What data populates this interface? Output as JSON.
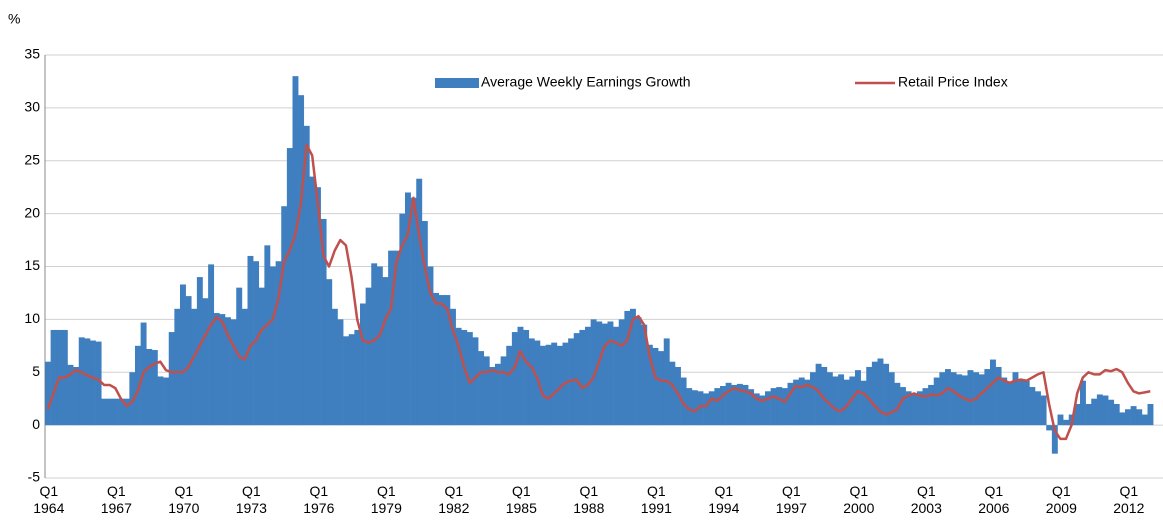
{
  "chart_data": {
    "type": "bar_line",
    "ylabel": "%",
    "ylim": [
      -5,
      35
    ],
    "yticks": [
      -5,
      0,
      5,
      10,
      15,
      20,
      25,
      30,
      35
    ],
    "grid": true,
    "legend": "top",
    "categories": [
      "Q1\n1964",
      null,
      null,
      null,
      null,
      null,
      null,
      null,
      null,
      null,
      null,
      null,
      "Q1\n1967",
      null,
      null,
      null,
      null,
      null,
      null,
      null,
      null,
      null,
      null,
      null,
      "Q1\n1970",
      null,
      null,
      null,
      null,
      null,
      null,
      null,
      null,
      null,
      null,
      null,
      "Q1\n1973",
      null,
      null,
      null,
      null,
      null,
      null,
      null,
      null,
      null,
      null,
      null,
      "Q1\n1976",
      null,
      null,
      null,
      null,
      null,
      null,
      null,
      null,
      null,
      null,
      null,
      "Q1\n1979",
      null,
      null,
      null,
      null,
      null,
      null,
      null,
      null,
      null,
      null,
      null,
      "Q1\n1982",
      null,
      null,
      null,
      null,
      null,
      null,
      null,
      null,
      null,
      null,
      null,
      "Q1\n1985",
      null,
      null,
      null,
      null,
      null,
      null,
      null,
      null,
      null,
      null,
      null,
      "Q1\n1988",
      null,
      null,
      null,
      null,
      null,
      null,
      null,
      null,
      null,
      null,
      null,
      "Q1\n1991",
      null,
      null,
      null,
      null,
      null,
      null,
      null,
      null,
      null,
      null,
      null,
      "Q1\n1994",
      null,
      null,
      null,
      null,
      null,
      null,
      null,
      null,
      null,
      null,
      null,
      "Q1\n1997",
      null,
      null,
      null,
      null,
      null,
      null,
      null,
      null,
      null,
      null,
      null,
      "Q1\n2000",
      null,
      null,
      null,
      null,
      null,
      null,
      null,
      null,
      null,
      null,
      null,
      "Q1\n2003",
      null,
      null,
      null,
      null,
      null,
      null,
      null,
      null,
      null,
      null,
      null,
      "Q1\n2006",
      null,
      null,
      null,
      null,
      null,
      null,
      null,
      null,
      null,
      null,
      null,
      "Q1\n2009",
      null,
      null,
      null,
      null,
      null,
      null,
      null,
      null,
      null,
      null,
      null,
      "Q1\n2012",
      null,
      null,
      null,
      null
    ],
    "series": [
      {
        "name": "Average Weekly Earnings Growth",
        "type": "bar",
        "color": "#3f7fbf",
        "values": [
          6.0,
          9,
          9,
          9,
          5.7,
          5.5,
          8.3,
          8.2,
          8.0,
          7.9,
          2.5,
          2.5,
          2.5,
          2.5,
          2.5,
          5.0,
          7.5,
          9.7,
          7.2,
          7.1,
          4.6,
          4.5,
          8.8,
          11.0,
          13.3,
          12.2,
          11.0,
          14.0,
          12.0,
          15.2,
          10.6,
          10.5,
          10.2,
          10.0,
          13.0,
          11.0,
          16.0,
          15.5,
          13.0,
          17.0,
          15.0,
          15.5,
          20.7,
          26.2,
          33.0,
          31.2,
          28.3,
          23.5,
          22.5,
          19.5,
          13.8,
          11.0,
          10.0,
          8.4,
          8.6,
          9.0,
          11.5,
          13.0,
          15.3,
          15.0,
          14.0,
          16.5,
          16.5,
          20.0,
          22.0,
          21.5,
          23.3,
          19.3,
          15.0,
          12.5,
          12.3,
          12.3,
          11.0,
          9.2,
          9.0,
          8.8,
          8.3,
          7.0,
          6.5,
          5.5,
          5.8,
          6.5,
          7.5,
          8.8,
          9.3,
          9.0,
          8.2,
          8.0,
          7.5,
          7.6,
          7.8,
          7.5,
          7.8,
          8.2,
          8.7,
          9.0,
          9.3,
          10.0,
          9.8,
          9.6,
          9.8,
          9.3,
          10.0,
          10.8,
          11.0,
          10.2,
          9.5,
          7.6,
          7.3,
          7.0,
          8.2,
          6.0,
          5.5,
          4.5,
          3.5,
          3.3,
          3.2,
          3.0,
          3.2,
          3.5,
          3.7,
          4.0,
          3.8,
          3.9,
          3.8,
          3.4,
          3.0,
          2.8,
          3.2,
          3.5,
          3.6,
          3.5,
          4.0,
          4.3,
          4.5,
          4.3,
          5.0,
          5.8,
          5.5,
          5.0,
          4.6,
          4.8,
          4.3,
          4.6,
          5.2,
          4.2,
          5.5,
          6.0,
          6.3,
          5.8,
          5.0,
          4.0,
          3.6,
          3.2,
          3.0,
          3.2,
          3.5,
          3.8,
          4.5,
          5.0,
          5.3,
          5.0,
          4.8,
          4.7,
          5.2,
          5.0,
          4.8,
          5.3,
          6.2,
          5.5,
          4.5,
          4.0,
          5.0,
          4.3,
          4.2,
          3.6,
          3.2,
          2.8,
          -0.5,
          -2.7,
          1.0,
          0.5,
          1.0,
          2.0,
          4.2,
          2.0,
          2.5,
          2.9,
          2.8,
          2.4,
          2.0,
          1.2,
          1.5,
          1.8,
          1.5,
          1.0,
          2.0
        ]
      },
      {
        "name": "Retail Price Index",
        "type": "line",
        "color": "#c0504d",
        "values": [
          1.5,
          3,
          4.5,
          4.5,
          4.8,
          5.2,
          5.0,
          4.7,
          4.5,
          4.3,
          3.8,
          3.8,
          3.5,
          2.5,
          1.8,
          2.2,
          3.2,
          5.0,
          5.5,
          5.8,
          6.0,
          5.2,
          5.0,
          5.0,
          5.0,
          5.5,
          6.5,
          7.5,
          8.5,
          9.5,
          10.2,
          9.8,
          8.5,
          7.5,
          6.5,
          6.2,
          7.5,
          8.0,
          9.0,
          9.5,
          10.0,
          12.0,
          15.5,
          16.5,
          18.0,
          21.0,
          26.5,
          25.5,
          21.0,
          16.0,
          15.0,
          16.5,
          17.5,
          17.0,
          14.0,
          10.0,
          8.0,
          7.8,
          8.0,
          8.5,
          10.0,
          11.0,
          15.5,
          17.0,
          18.0,
          21.5,
          18.0,
          15.0,
          12.5,
          11.5,
          11.5,
          11.0,
          9.0,
          7.5,
          5.5,
          4.0,
          4.5,
          5.0,
          5.0,
          5.2,
          5.0,
          5.0,
          4.8,
          5.5,
          7.0,
          6.0,
          5.5,
          4.5,
          2.8,
          2.5,
          3.0,
          3.5,
          4.0,
          4.2,
          4.3,
          3.5,
          3.8,
          4.5,
          6.0,
          7.5,
          8.0,
          7.8,
          7.5,
          8.0,
          10.0,
          10.3,
          9.5,
          6.5,
          4.5,
          4.2,
          4.2,
          3.8,
          3.0,
          2.0,
          1.5,
          1.3,
          1.8,
          1.8,
          2.5,
          2.3,
          2.8,
          3.2,
          3.5,
          3.3,
          3.2,
          3.0,
          2.5,
          2.3,
          2.5,
          2.7,
          2.5,
          2.2,
          3.0,
          3.7,
          3.6,
          3.8,
          3.6,
          3.2,
          2.5,
          2.0,
          1.5,
          1.3,
          1.8,
          2.5,
          3.2,
          3.0,
          2.5,
          1.8,
          1.3,
          1.0,
          1.2,
          1.5,
          2.5,
          2.8,
          3.0,
          2.8,
          2.7,
          2.9,
          2.8,
          3.0,
          3.5,
          3.2,
          2.8,
          2.5,
          2.3,
          2.5,
          3.0,
          3.5,
          4.0,
          4.5,
          4.2,
          4.0,
          4.2,
          4.3,
          4.2,
          4.5,
          4.8,
          5.0,
          2.0,
          -0.5,
          -1.3,
          -1.3,
          0,
          3.0,
          4.5,
          5.0,
          4.8,
          4.8,
          5.2,
          5.1,
          5.3,
          5.0,
          4.0,
          3.2,
          3.0,
          3.1,
          3.2
        ]
      }
    ]
  }
}
